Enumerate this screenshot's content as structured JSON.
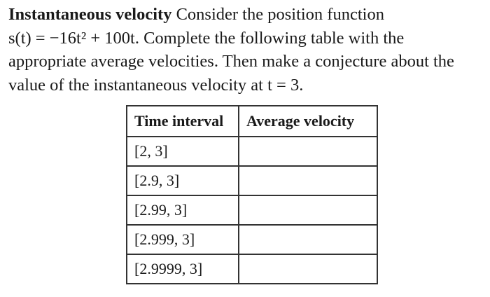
{
  "problem": {
    "heading": "Instantaneous velocity",
    "lines": [
      "Consider the position function",
      "s(t) = −16t² + 100t. Complete the following table with the",
      "appropriate average velocities. Then make a conjecture about the",
      "value of the instantaneous velocity at t = 3."
    ]
  },
  "table": {
    "headers": [
      "Time interval",
      "Average velocity"
    ],
    "rows": [
      "[2, 3]",
      "[2.9, 3]",
      "[2.99, 3]",
      "[2.999, 3]",
      "[2.9999, 3]"
    ]
  }
}
